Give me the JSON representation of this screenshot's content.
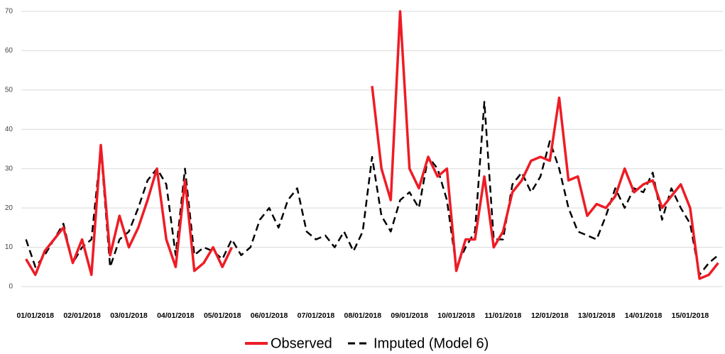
{
  "chart_data": {
    "type": "line",
    "x": [
      -0.2,
      0,
      0.2,
      0.4,
      0.6,
      0.8,
      1,
      1.2,
      1.4,
      1.6,
      1.8,
      2,
      2.2,
      2.4,
      2.6,
      2.8,
      3,
      3.2,
      3.4,
      3.6,
      3.8,
      4,
      4.2,
      4.4,
      4.6,
      4.8,
      5,
      5.2,
      5.4,
      5.6,
      5.8,
      6,
      6.2,
      6.4,
      6.6,
      6.8,
      7,
      7.2,
      7.4,
      7.6,
      7.8,
      8,
      8.2,
      8.4,
      8.6,
      8.8,
      9,
      9.2,
      9.4,
      9.6,
      9.8,
      10,
      10.2,
      10.4,
      10.6,
      10.8,
      11,
      11.2,
      11.4,
      11.6,
      11.8,
      12,
      12.2,
      12.4,
      12.6,
      12.8,
      13,
      13.2,
      13.4,
      13.6,
      13.8,
      14,
      14.2,
      14.4,
      14.6
    ],
    "series": [
      {
        "name": "Observed",
        "color": "#ee1c25",
        "dash": false,
        "values": [
          7,
          3,
          9,
          12,
          15,
          6,
          12,
          3,
          36,
          8,
          18,
          10,
          15,
          22,
          30,
          12,
          5,
          27,
          4,
          6,
          10,
          5,
          10,
          null,
          null,
          null,
          null,
          null,
          null,
          null,
          null,
          null,
          null,
          null,
          null,
          null,
          null,
          51,
          30,
          22,
          70,
          30,
          25,
          33,
          28,
          30,
          4,
          12,
          12,
          28,
          10,
          14,
          24,
          27,
          32,
          33,
          32,
          48,
          27,
          28,
          18,
          21,
          20,
          23,
          30,
          24,
          26,
          27,
          20,
          23,
          26,
          20,
          2,
          3,
          6
        ]
      },
      {
        "name": "Imputed (Model 6)",
        "color": "#000000",
        "dash": true,
        "values": [
          12,
          5,
          8,
          12,
          16,
          6,
          10,
          12,
          35,
          5,
          12,
          14,
          20,
          27,
          30,
          26,
          8,
          30,
          8,
          10,
          9,
          7,
          12,
          8,
          10,
          17,
          20,
          15,
          22,
          25,
          14,
          12,
          13,
          10,
          14,
          9,
          14,
          33,
          18,
          14,
          22,
          24,
          20,
          33,
          30,
          22,
          5,
          10,
          14,
          47,
          12,
          12,
          26,
          29,
          24,
          28,
          37,
          30,
          20,
          14,
          13,
          12,
          18,
          25,
          20,
          25,
          24,
          29,
          17,
          25,
          20,
          16,
          3,
          6,
          8
        ]
      }
    ],
    "xlim": [
      -0.3,
      14.7
    ],
    "xticks": [
      {
        "value": 0,
        "label": "01/01/2018"
      },
      {
        "value": 1,
        "label": "02/01/2018"
      },
      {
        "value": 2,
        "label": "03/01/2018"
      },
      {
        "value": 3,
        "label": "04/01/2018"
      },
      {
        "value": 4,
        "label": "05/01/2018"
      },
      {
        "value": 5,
        "label": "06/01/2018"
      },
      {
        "value": 6,
        "label": "07/01/2018"
      },
      {
        "value": 7,
        "label": "08/01/2018"
      },
      {
        "value": 8,
        "label": "09/01/2018"
      },
      {
        "value": 9,
        "label": "10/01/2018"
      },
      {
        "value": 10,
        "label": "11/01/2018"
      },
      {
        "value": 11,
        "label": "12/01/2018"
      },
      {
        "value": 12,
        "label": "13/01/2018"
      },
      {
        "value": 13,
        "label": "14/01/2018"
      },
      {
        "value": 14,
        "label": "15/01/2018"
      }
    ],
    "ylim": [
      0,
      70
    ],
    "yticks": [
      0,
      10,
      20,
      30,
      40,
      50,
      60,
      70
    ],
    "grid": true
  }
}
